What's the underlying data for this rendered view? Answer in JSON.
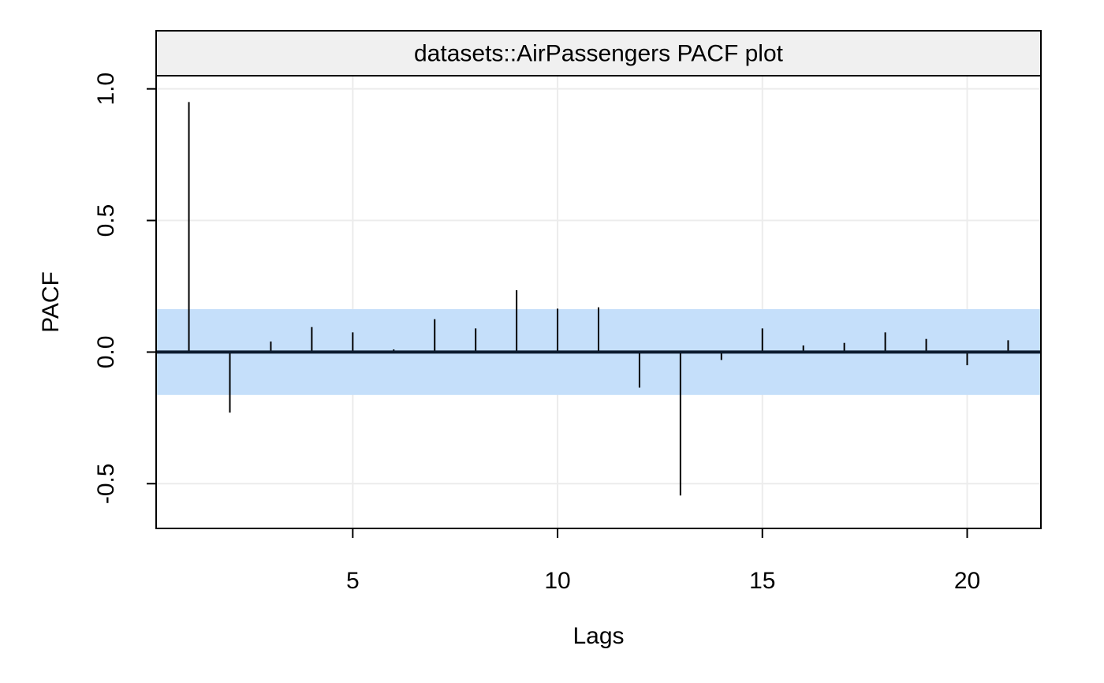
{
  "chart_data": {
    "type": "bar",
    "title": "datasets::AirPassengers PACF plot",
    "xlabel": "Lags",
    "ylabel": "PACF",
    "xlim": [
      0.2,
      21.8
    ],
    "ylim": [
      -0.67,
      1.05
    ],
    "x_ticks": [
      5,
      10,
      15,
      20
    ],
    "y_ticks": [
      -0.5,
      0.0,
      0.5,
      1.0
    ],
    "y_tick_labels": [
      "-0.5",
      "0.0",
      "0.5",
      "1.0"
    ],
    "grid": true,
    "confidence_band": [
      -0.163,
      0.163
    ],
    "colors": {
      "band": "#c5dffa",
      "strip": "#f0f0f0",
      "grid": "#ececec",
      "spike": "#000000",
      "zero_line": "#0c1b2e"
    },
    "lags": [
      1,
      2,
      3,
      4,
      5,
      6,
      7,
      8,
      9,
      10,
      11,
      12,
      13,
      14,
      15,
      16,
      17,
      18,
      19,
      20,
      21
    ],
    "values": [
      0.95,
      -0.23,
      0.04,
      0.095,
      0.075,
      0.01,
      0.125,
      0.09,
      0.235,
      0.165,
      0.17,
      -0.135,
      -0.545,
      -0.03,
      0.09,
      0.025,
      0.035,
      0.075,
      0.05,
      -0.05,
      0.045
    ]
  }
}
